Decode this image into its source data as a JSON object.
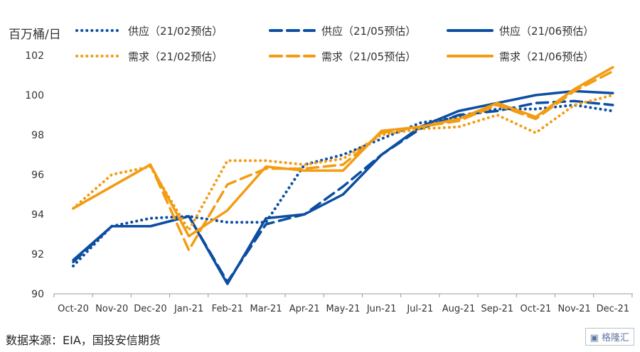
{
  "chart_data": {
    "type": "line",
    "ylabel": "百万桶/日",
    "ylim": [
      90,
      102
    ],
    "yticks": [
      90,
      92,
      94,
      96,
      98,
      100,
      102
    ],
    "categories": [
      "Oct-20",
      "Nov-20",
      "Dec-20",
      "Jan-21",
      "Feb-21",
      "Mar-21",
      "Apr-21",
      "May-21",
      "Jun-21",
      "Jul-21",
      "Aug-21",
      "Sep-21",
      "Oct-21",
      "Nov-21",
      "Dec-21"
    ],
    "grid": false,
    "legend_placement": "top",
    "series": [
      {
        "name": "供应（21/02预估）",
        "color": "#0b4ea2",
        "style": "dotted",
        "values": [
          91.4,
          93.4,
          93.8,
          93.9,
          93.6,
          93.6,
          96.5,
          97.0,
          97.8,
          98.6,
          98.9,
          99.3,
          99.3,
          99.5,
          99.2
        ]
      },
      {
        "name": "供应（21/05预估）",
        "color": "#0b4ea2",
        "style": "dashed",
        "values": [
          91.6,
          93.4,
          93.4,
          93.9,
          90.6,
          93.5,
          94.0,
          95.4,
          97.0,
          98.3,
          99.0,
          99.2,
          99.6,
          99.7,
          99.5
        ]
      },
      {
        "name": "供应（21/06预估）",
        "color": "#0b4ea2",
        "style": "solid",
        "values": [
          91.7,
          93.4,
          93.4,
          93.9,
          90.5,
          93.8,
          94.0,
          95.0,
          97.0,
          98.4,
          99.2,
          99.6,
          100.0,
          100.2,
          100.1
        ]
      },
      {
        "name": "需求（21/02预估）",
        "color": "#f39c12",
        "style": "dotted",
        "values": [
          94.3,
          96.0,
          96.4,
          93.2,
          96.7,
          96.7,
          96.5,
          96.8,
          98.0,
          98.3,
          98.4,
          99.0,
          98.1,
          99.5,
          100.0
        ]
      },
      {
        "name": "需求（21/05预估）",
        "color": "#f39c12",
        "style": "dashed",
        "values": [
          94.3,
          95.4,
          96.5,
          92.2,
          95.5,
          96.3,
          96.3,
          96.5,
          98.1,
          98.4,
          98.7,
          99.5,
          98.8,
          100.2,
          101.2
        ]
      },
      {
        "name": "需求（21/06预估）",
        "color": "#f39c12",
        "style": "solid",
        "values": [
          94.3,
          95.4,
          96.5,
          92.9,
          94.2,
          96.4,
          96.2,
          96.2,
          98.2,
          98.4,
          98.8,
          99.6,
          98.9,
          100.3,
          101.4
        ]
      }
    ]
  },
  "source": "数据来源：EIA，国投安信期货",
  "watermark": "格隆汇"
}
